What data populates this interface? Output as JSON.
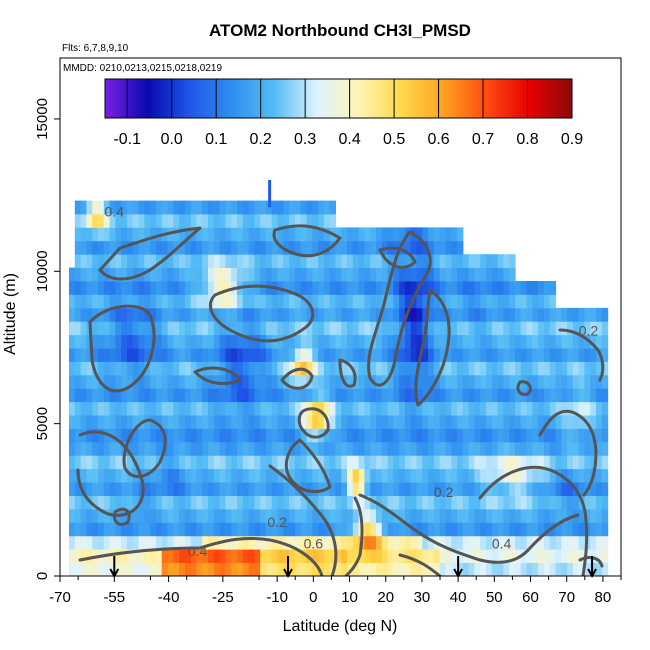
{
  "chart_data": {
    "type": "heatmap",
    "title": "ATOM2 Northbound CH3I_PMSD",
    "subtitle_flights": "Flts: 6,7,8,9,10",
    "subtitle_dates": "MMDD: 0210,0213,0215,0218,0219",
    "xlabel": "Latitude (deg N)",
    "ylabel": "Altitude (m)",
    "xlim": [
      -70,
      85
    ],
    "ylim": [
      0,
      17000
    ],
    "x_ticks": [
      -70,
      -55,
      -40,
      -25,
      -10,
      0,
      10,
      20,
      30,
      40,
      50,
      60,
      70,
      80
    ],
    "y_ticks": [
      0,
      5000,
      10000,
      15000
    ],
    "colorbar": {
      "ticks": [
        -0.1,
        0.0,
        0.1,
        0.2,
        0.3,
        0.4,
        0.5,
        0.6,
        0.7,
        0.8,
        0.9
      ],
      "range": [
        -0.15,
        0.9
      ],
      "colors": [
        "#7a1fe6",
        "#0a0ab0",
        "#1f56e8",
        "#2f8ff0",
        "#55bdf5",
        "#dff3ff",
        "#fff3b0",
        "#ffd84a",
        "#ffa020",
        "#ff4a10",
        "#e60000",
        "#8c0a0a"
      ]
    },
    "contour_labels": [
      {
        "text": "0.4",
        "lat": -55,
        "alt": 11800
      },
      {
        "text": "0.2",
        "lat": 36,
        "alt": 2600
      },
      {
        "text": "0.2",
        "lat": -10,
        "alt": 1600
      },
      {
        "text": "0.6",
        "lat": 0,
        "alt": 900
      },
      {
        "text": "0.4",
        "lat": -32,
        "alt": 650
      },
      {
        "text": "0.4",
        "lat": 52,
        "alt": 900
      },
      {
        "text": "0.2",
        "lat": 76,
        "alt": 7900
      }
    ],
    "flight_arrows_lat": [
      -55,
      -7,
      40,
      77
    ],
    "grid": false
  }
}
